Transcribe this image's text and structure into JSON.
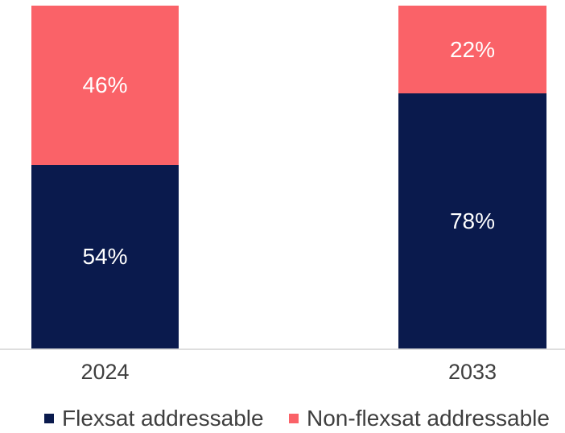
{
  "chart_data": {
    "type": "bar",
    "subtype": "stacked-100-percent",
    "categories": [
      "2024",
      "2033"
    ],
    "series": [
      {
        "name": "Flexsat addressable",
        "color": "#0a1a4d",
        "values": [
          54,
          78
        ]
      },
      {
        "name": "Non-flexsat addressable",
        "color": "#fa6268",
        "values": [
          46,
          22
        ]
      }
    ],
    "value_suffix": "%",
    "value_labels": {
      "Flexsat addressable": [
        "54%",
        "78%"
      ],
      "Non-flexsat addressable": [
        "46%",
        "22%"
      ]
    },
    "title": "",
    "xlabel": "",
    "ylabel": "",
    "ylim": [
      0,
      100
    ],
    "grid": false,
    "legend_position": "bottom",
    "axis_line_color": "#dedede",
    "value_label_color": "#ffffff",
    "category_label_color": "#3f3f3f"
  },
  "legend": {
    "items": [
      {
        "label": "Flexsat addressable",
        "color": "#0a1a4d"
      },
      {
        "label": "Non-flexsat addressable",
        "color": "#fa6268"
      }
    ]
  }
}
